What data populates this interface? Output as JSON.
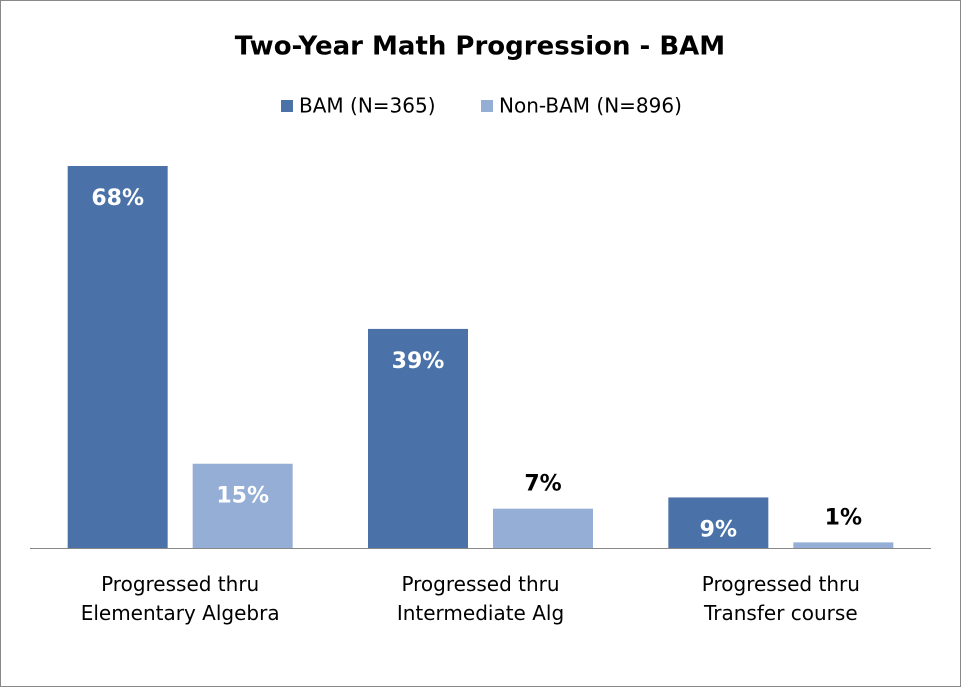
{
  "chart_data": {
    "type": "bar",
    "title": "Two-Year Math Progression - BAM",
    "categories": [
      "Progressed thru\nElementary Algebra",
      "Progressed thru\nIntermediate Alg",
      "Progressed thru\nTransfer course"
    ],
    "series": [
      {
        "name": "BAM (N=365)",
        "color": "#4a72a8",
        "values": [
          68,
          39,
          9
        ],
        "value_labels": [
          "68%",
          "39%",
          "9%"
        ]
      },
      {
        "name": "Non-BAM (N=896)",
        "color": "#95aed6",
        "values": [
          15,
          7,
          1
        ],
        "value_labels": [
          "15%",
          "7%",
          "1%"
        ]
      }
    ],
    "legend": "top"
  }
}
